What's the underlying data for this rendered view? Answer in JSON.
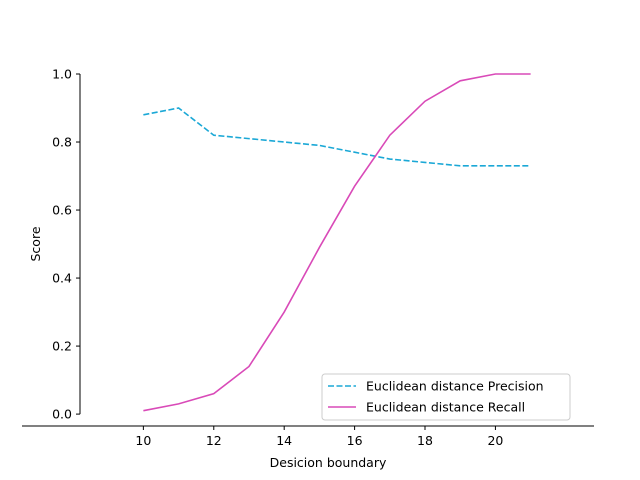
{
  "chart_data": {
    "type": "line",
    "xlabel": "Desicion boundary",
    "ylabel": "Score",
    "xlim": [
      8.2,
      22.8
    ],
    "ylim": [
      -0.035,
      1.0
    ],
    "xticks": [
      10,
      12,
      14,
      16,
      18,
      20
    ],
    "yticks": [
      0.0,
      0.2,
      0.4,
      0.6,
      0.8,
      1.0
    ],
    "grid": false,
    "legend_position": "lower-right",
    "x": [
      10,
      11,
      12,
      13,
      14,
      15,
      16,
      17,
      18,
      19,
      20,
      21
    ],
    "series": [
      {
        "name": "Euclidean distance Precision",
        "color": "#1ba8d6",
        "style": "dashed",
        "values": [
          0.88,
          0.9,
          0.82,
          0.81,
          0.8,
          0.79,
          0.77,
          0.75,
          0.74,
          0.73,
          0.73,
          0.73
        ]
      },
      {
        "name": "Euclidean distance Recall",
        "color": "#d94ab8",
        "style": "solid",
        "values": [
          0.01,
          0.03,
          0.06,
          0.14,
          0.3,
          0.49,
          0.67,
          0.82,
          0.92,
          0.98,
          1.0,
          1.0
        ]
      }
    ]
  }
}
